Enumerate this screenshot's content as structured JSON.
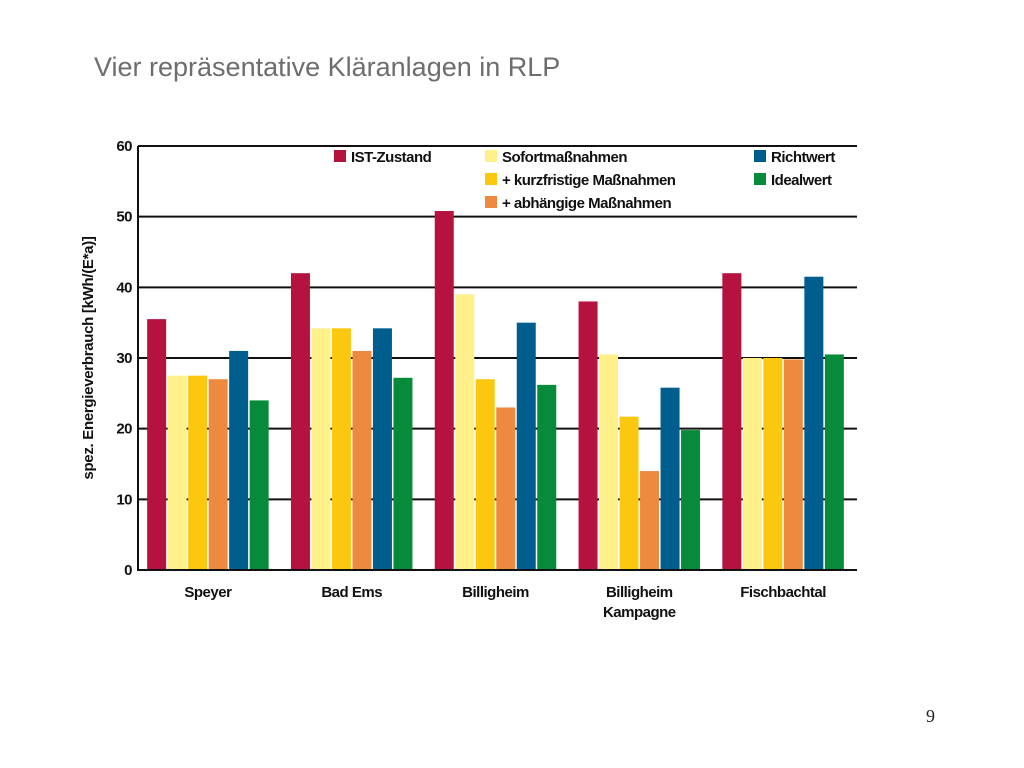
{
  "slide": {
    "title": "Vier repräsentative Kläranlagen in RLP",
    "page_number": "9"
  },
  "chart_data": {
    "type": "bar",
    "categories": [
      [
        "Speyer"
      ],
      [
        "Bad Ems"
      ],
      [
        "Billigheim"
      ],
      [
        "Billigheim",
        "Kampagne"
      ],
      [
        "Fischbachtal"
      ]
    ],
    "series": [
      {
        "name": "IST-Zustand",
        "color": "#b5123f",
        "values": [
          35.5,
          42,
          50.8,
          38,
          42
        ]
      },
      {
        "name": "Sofortmaßnahmen",
        "color": "#fff08a",
        "values": [
          27.5,
          34.2,
          39,
          30.5,
          30
        ]
      },
      {
        "name": "+ kurzfristige Maßnahmen",
        "color": "#fcc70f",
        "values": [
          27.5,
          34.2,
          27,
          21.7,
          30
        ]
      },
      {
        "name": "+ abhängige Maßnahmen",
        "color": "#ee8a3f",
        "values": [
          27,
          31,
          23,
          14,
          29.8
        ]
      },
      {
        "name": "Richtwert",
        "color": "#005e8e",
        "values": [
          31,
          34.2,
          35,
          25.8,
          41.5
        ]
      },
      {
        "name": "Idealwert",
        "color": "#078a3a",
        "values": [
          24,
          27.2,
          26.2,
          19.8,
          30.5
        ]
      }
    ],
    "ylabel": "spez. Energieverbrauch [kWh/(E*a)]",
    "xlabel": "",
    "ylim": [
      0,
      60
    ],
    "yticks": [
      0,
      10,
      20,
      30,
      40,
      50,
      60
    ],
    "grid": true,
    "legend_position": "top"
  }
}
